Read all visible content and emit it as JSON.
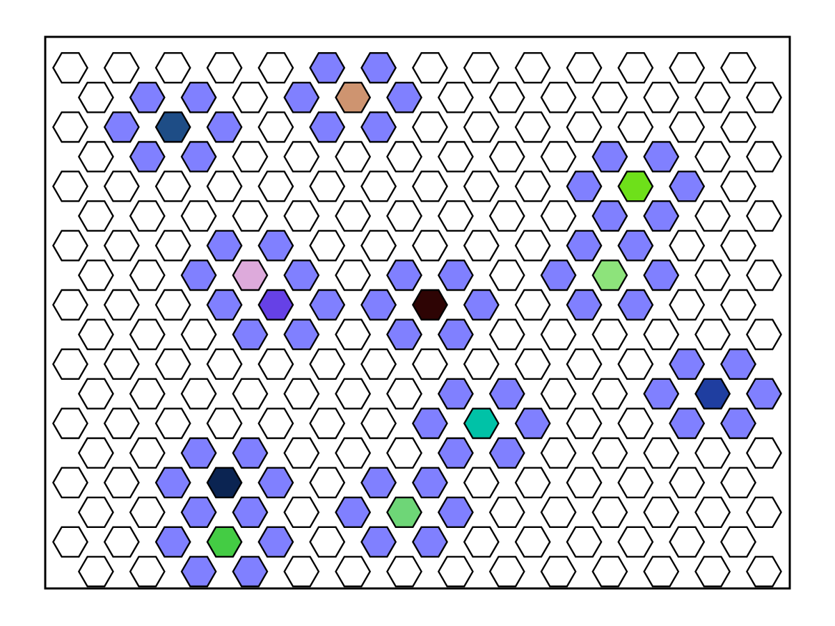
{
  "board": {
    "rows": 18,
    "cols": 14,
    "layout": "odd-rows-offset-hex-grid",
    "colors": {
      "empty": "#ffffff",
      "neighbor": "#8080ff",
      "frame": "#000000",
      "outline": "#000000"
    },
    "highlights": [
      {
        "row": 2,
        "col": 2,
        "color": "#1e4d86"
      },
      {
        "row": 1,
        "col": 5,
        "color": "#ce9470"
      },
      {
        "row": 4,
        "col": 11,
        "color": "#6ee01a"
      },
      {
        "row": 7,
        "col": 10,
        "color": "#8de37b"
      },
      {
        "row": 7,
        "col": 3,
        "color": "#ddaadb"
      },
      {
        "row": 8,
        "col": 4,
        "color": "#6641e6"
      },
      {
        "row": 8,
        "col": 7,
        "color": "#2e0404"
      },
      {
        "row": 12,
        "col": 8,
        "color": "#00c2a7"
      },
      {
        "row": 11,
        "col": 12,
        "color": "#1f3ea0"
      },
      {
        "row": 14,
        "col": 3,
        "color": "#0b2452"
      },
      {
        "row": 15,
        "col": 6,
        "color": "#6ed677"
      },
      {
        "row": 16,
        "col": 3,
        "color": "#44cc44"
      }
    ]
  }
}
